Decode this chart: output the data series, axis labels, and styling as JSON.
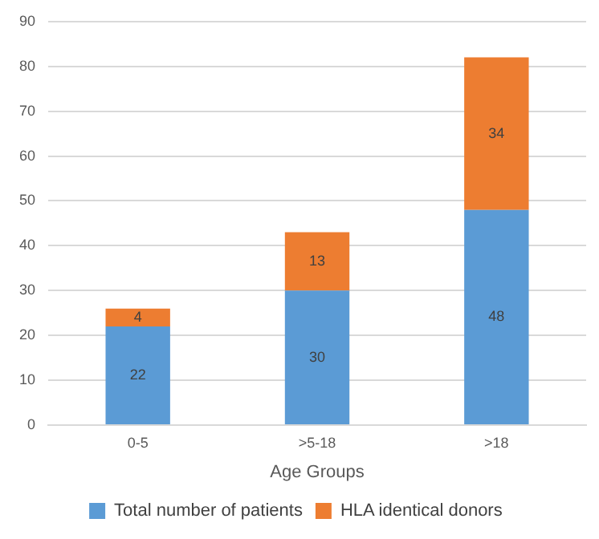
{
  "chart_data": {
    "type": "bar",
    "xlabel": "Age Groups",
    "categories": [
      "0-5",
      ">5-18",
      ">18"
    ],
    "series": [
      {
        "name": "Total number of patients",
        "color": "#5b9bd5",
        "values": [
          22,
          30,
          48
        ]
      },
      {
        "name": "HLA identical donors",
        "color": "#ed7d31",
        "values": [
          4,
          13,
          34
        ]
      }
    ],
    "stacked": true,
    "ylim": [
      0,
      90
    ],
    "yticks": [
      0,
      10,
      20,
      30,
      40,
      50,
      60,
      70,
      80,
      90
    ],
    "grid": "y",
    "legend": "bottom",
    "data_labels": true
  }
}
